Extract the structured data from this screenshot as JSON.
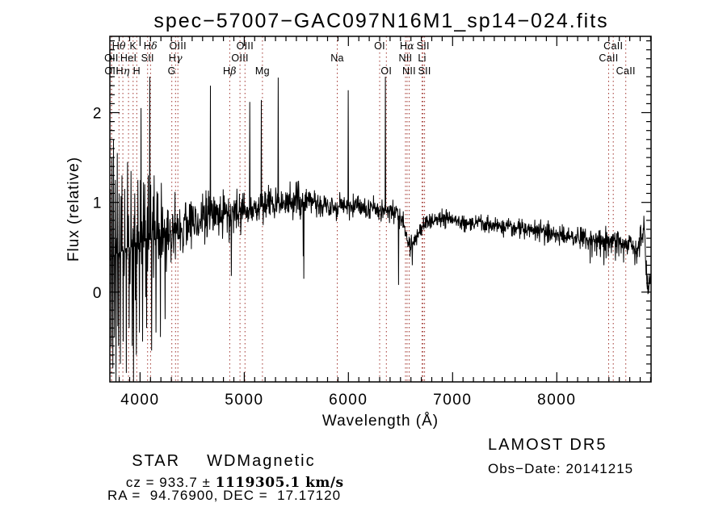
{
  "title": "spec−57007−GAC097N16M1_sp14−024.fits",
  "axes": {
    "x_label": "Wavelength (Å)",
    "y_label": "Flux (relative)",
    "x_ticks": [
      4000,
      5000,
      6000,
      7000,
      8000
    ],
    "y_ticks": [
      0,
      1,
      2
    ]
  },
  "annotations": {
    "object_class": "STAR",
    "subclass": "WDMagnetic",
    "survey": "LAMOST DR5",
    "cz_prefix": "cz = 933.7 ± ",
    "cz_value": "1119305.1 km/s",
    "obs_date": "Obs−Date: 20141215",
    "radec": "RA =  94.76900, DEC =  17.17120"
  },
  "colors": {
    "spectrum": "#000000",
    "marker_line": "#a0342e",
    "background": "#ffffff"
  },
  "chart_data": {
    "type": "line",
    "title": "spec−57007−GAC097N16M1_sp14−024.fits",
    "xlabel": "Wavelength (Å)",
    "ylabel": "Flux (relative)",
    "xlim": [
      3710,
      8905
    ],
    "ylim": [
      -1.0,
      2.85
    ],
    "grid": false,
    "legend": "none",
    "sample_step": 3,
    "seed": 12345,
    "spectral_lines": [
      {
        "name": "OII",
        "wavelength": 3725,
        "row": 2
      },
      {
        "name": "OII",
        "wavelength": 3727,
        "row": 3
      },
      {
        "name": "Hθ",
        "wavelength": 3798,
        "row": 1
      },
      {
        "name": "Hη",
        "wavelength": 3835,
        "row": 3
      },
      {
        "name": "HeI",
        "wavelength": 3889,
        "row": 2
      },
      {
        "name": "K",
        "wavelength": 3933,
        "row": 1
      },
      {
        "name": "H",
        "wavelength": 3968,
        "row": 3
      },
      {
        "name": "SII",
        "wavelength": 4072,
        "row": 2
      },
      {
        "name": "Hδ",
        "wavelength": 4101,
        "row": 1
      },
      {
        "name": "G",
        "wavelength": 4305,
        "row": 3
      },
      {
        "name": "Hγ",
        "wavelength": 4340,
        "row": 2
      },
      {
        "name": "OIII",
        "wavelength": 4363,
        "row": 1
      },
      {
        "name": "Hβ",
        "wavelength": 4861,
        "row": 3
      },
      {
        "name": "OIII",
        "wavelength": 4959,
        "row": 2
      },
      {
        "name": "OIII",
        "wavelength": 5007,
        "row": 1
      },
      {
        "name": "Mg",
        "wavelength": 5175,
        "row": 3
      },
      {
        "name": "Na",
        "wavelength": 5893,
        "row": 2
      },
      {
        "name": "OI",
        "wavelength": 6300,
        "row": 1
      },
      {
        "name": "OI",
        "wavelength": 6364,
        "row": 3
      },
      {
        "name": "NII",
        "wavelength": 6548,
        "row": 2
      },
      {
        "name": "Hα",
        "wavelength": 6563,
        "row": 1
      },
      {
        "name": "NII",
        "wavelength": 6583,
        "row": 3
      },
      {
        "name": "Li",
        "wavelength": 6707,
        "row": 2
      },
      {
        "name": "SII",
        "wavelength": 6716,
        "row": 1
      },
      {
        "name": "SII",
        "wavelength": 6731,
        "row": 3
      },
      {
        "name": "CaII",
        "wavelength": 8498,
        "row": 2
      },
      {
        "name": "CaII",
        "wavelength": 8542,
        "row": 1
      },
      {
        "name": "CaII",
        "wavelength": 8662,
        "row": 3
      }
    ],
    "continuum": [
      [
        3712,
        0.35
      ],
      [
        3760,
        0.42
      ],
      [
        3820,
        0.45
      ],
      [
        3880,
        0.5
      ],
      [
        3940,
        0.5
      ],
      [
        4000,
        0.55
      ],
      [
        4080,
        0.58
      ],
      [
        4160,
        0.6
      ],
      [
        4250,
        0.64
      ],
      [
        4350,
        0.7
      ],
      [
        4450,
        0.76
      ],
      [
        4550,
        0.8
      ],
      [
        4650,
        0.84
      ],
      [
        4750,
        0.87
      ],
      [
        4830,
        0.87
      ],
      [
        4870,
        0.8
      ],
      [
        4910,
        0.87
      ],
      [
        5000,
        0.9
      ],
      [
        5100,
        0.93
      ],
      [
        5200,
        0.96
      ],
      [
        5300,
        0.99
      ],
      [
        5400,
        1.0
      ],
      [
        5500,
        1.02
      ],
      [
        5600,
        1.0
      ],
      [
        5700,
        0.99
      ],
      [
        5800,
        0.97
      ],
      [
        5900,
        0.95
      ],
      [
        6000,
        0.96
      ],
      [
        6100,
        0.94
      ],
      [
        6200,
        0.92
      ],
      [
        6300,
        0.91
      ],
      [
        6400,
        0.9
      ],
      [
        6460,
        0.88
      ],
      [
        6520,
        0.8
      ],
      [
        6560,
        0.62
      ],
      [
        6595,
        0.5
      ],
      [
        6625,
        0.55
      ],
      [
        6665,
        0.65
      ],
      [
        6705,
        0.72
      ],
      [
        6745,
        0.78
      ],
      [
        6800,
        0.8
      ],
      [
        6900,
        0.82
      ],
      [
        7000,
        0.8
      ],
      [
        7100,
        0.78
      ],
      [
        7200,
        0.77
      ],
      [
        7300,
        0.75
      ],
      [
        7400,
        0.74
      ],
      [
        7500,
        0.72
      ],
      [
        7600,
        0.71
      ],
      [
        7700,
        0.7
      ],
      [
        7800,
        0.68
      ],
      [
        7900,
        0.66
      ],
      [
        8000,
        0.65
      ],
      [
        8100,
        0.63
      ],
      [
        8200,
        0.62
      ],
      [
        8300,
        0.6
      ],
      [
        8400,
        0.57
      ],
      [
        8500,
        0.58
      ],
      [
        8600,
        0.55
      ],
      [
        8700,
        0.53
      ],
      [
        8750,
        0.5
      ],
      [
        8800,
        0.55
      ],
      [
        8825,
        0.62
      ],
      [
        8840,
        0.75
      ],
      [
        8852,
        0.4
      ],
      [
        8868,
        0.12
      ],
      [
        8882,
        0.04
      ],
      [
        8895,
        0.12
      ],
      [
        8905,
        0.15
      ]
    ],
    "noise_sigma": [
      [
        3710,
        3795,
        0.5
      ],
      [
        3795,
        4005,
        0.4
      ],
      [
        4005,
        4260,
        0.3
      ],
      [
        4260,
        4500,
        0.17
      ],
      [
        4500,
        4700,
        0.14
      ],
      [
        4700,
        5000,
        0.11
      ],
      [
        5000,
        5600,
        0.09
      ],
      [
        5600,
        6450,
        0.065
      ],
      [
        6450,
        6800,
        0.055
      ],
      [
        6800,
        7200,
        0.045
      ],
      [
        7200,
        7800,
        0.05
      ],
      [
        7800,
        8300,
        0.06
      ],
      [
        8300,
        8910,
        0.08
      ]
    ],
    "spikes": [
      [
        3716,
        1.15
      ],
      [
        3724,
        -0.6
      ],
      [
        3730,
        1.5
      ],
      [
        3738,
        -0.85
      ],
      [
        3745,
        1.7
      ],
      [
        3753,
        -0.5
      ],
      [
        3762,
        1.25
      ],
      [
        3770,
        -1.0
      ],
      [
        3782,
        1.55
      ],
      [
        3792,
        -0.6
      ],
      [
        3800,
        1.1
      ],
      [
        3812,
        -0.8
      ],
      [
        3825,
        1.3
      ],
      [
        3838,
        -0.55
      ],
      [
        3852,
        1.15
      ],
      [
        3868,
        -0.9
      ],
      [
        3880,
        1.45
      ],
      [
        3895,
        -0.4
      ],
      [
        3912,
        1.35
      ],
      [
        3925,
        -0.6
      ],
      [
        3938,
        -1.0
      ],
      [
        3950,
        1.1
      ],
      [
        3965,
        -0.7
      ],
      [
        3978,
        1.25
      ],
      [
        3995,
        -0.45
      ],
      [
        4008,
        2.05
      ],
      [
        4025,
        -0.55
      ],
      [
        4045,
        1.2
      ],
      [
        4062,
        -0.4
      ],
      [
        4078,
        1.3
      ],
      [
        4093,
        2.4
      ],
      [
        4110,
        -0.65
      ],
      [
        4135,
        1.3
      ],
      [
        4152,
        -0.45
      ],
      [
        4172,
        1.1
      ],
      [
        4195,
        -0.5
      ],
      [
        4215,
        0.95
      ],
      [
        4240,
        -0.3
      ],
      [
        4674,
        2.3
      ],
      [
        4876,
        0.18
      ],
      [
        5054,
        2.12
      ],
      [
        5163,
        2.14
      ],
      [
        5325,
        2.39
      ],
      [
        5566,
        0.4
      ],
      [
        5573,
        0.15
      ],
      [
        5998,
        2.25
      ],
      [
        6356,
        2.4
      ],
      [
        6481,
        0.08
      ],
      [
        6612,
        0.3
      ],
      [
        8320,
        0.32
      ],
      [
        8452,
        0.3
      ],
      [
        8562,
        0.35
      ],
      [
        8642,
        0.33
      ],
      [
        8836,
        0.85
      ]
    ]
  }
}
